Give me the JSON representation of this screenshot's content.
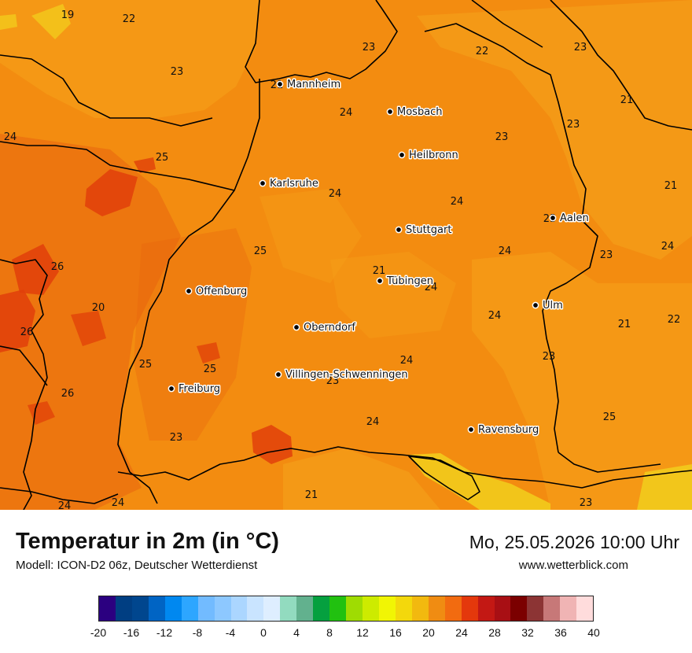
{
  "title": "Temperatur in 2m (in °C)",
  "model": "Modell: ICON-D2 06z, Deutscher Wetterdienst",
  "datetime": "Mo, 25.05.2026 10:00 Uhr",
  "website": "www.wetterblick.com",
  "colors": {
    "base_field": "#f38c10",
    "warm_patch": "#e8640e",
    "hot_patch": "#e0400a",
    "cool_patch": "#f5a21a",
    "alpine": "#f2cb1c",
    "border": "#000000"
  },
  "cities": [
    {
      "name": "Mannheim",
      "temp": "21"
    },
    {
      "name": "Mosbach",
      "temp": ""
    },
    {
      "name": "Heilbronn",
      "temp": ""
    },
    {
      "name": "Karlsruhe",
      "temp": ""
    },
    {
      "name": "Stuttgart",
      "temp": ""
    },
    {
      "name": "Aalen",
      "temp": "23"
    },
    {
      "name": "Tübingen",
      "temp": ""
    },
    {
      "name": "Offenburg",
      "temp": ""
    },
    {
      "name": "Oberndorf",
      "temp": ""
    },
    {
      "name": "Ulm",
      "temp": ""
    },
    {
      "name": "Villingen-Schwenningen",
      "temp": ""
    },
    {
      "name": "Freiburg",
      "temp": ""
    },
    {
      "name": "Ravensburg",
      "temp": ""
    }
  ],
  "values": [
    "19",
    "22",
    "23",
    "22",
    "23",
    "23",
    "21",
    "24",
    "24",
    "23",
    "23",
    "25",
    "24",
    "21",
    "24",
    "23",
    "26",
    "24",
    "25",
    "24",
    "26",
    "20",
    "25",
    "21",
    "24",
    "22",
    "21",
    "24",
    "26",
    "25",
    "24",
    "23",
    "23",
    "25",
    "23",
    "24",
    "21",
    "24",
    "24",
    "23"
  ],
  "scale": {
    "colors": [
      "#2b0080",
      "#003e82",
      "#00468e",
      "#0064c4",
      "#0088f0",
      "#2da6ff",
      "#72bbff",
      "#8dc8ff",
      "#abd6ff",
      "#c9e4ff",
      "#deeeff",
      "#92dbbf",
      "#62b18e",
      "#05a03f",
      "#21c110",
      "#9fdc02",
      "#cdeb00",
      "#f1f504",
      "#f3d80c",
      "#f2b90f",
      "#f08c12",
      "#f26b10",
      "#e4380c",
      "#c31814",
      "#a80f14",
      "#7b0000",
      "#8c3434",
      "#c77878",
      "#f0b4b4",
      "#ffdcdc"
    ],
    "labels": [
      "-20",
      "-16",
      "-12",
      "-8",
      "-4",
      "0",
      "4",
      "8",
      "12",
      "16",
      "20",
      "24",
      "28",
      "32",
      "36",
      "40"
    ]
  }
}
